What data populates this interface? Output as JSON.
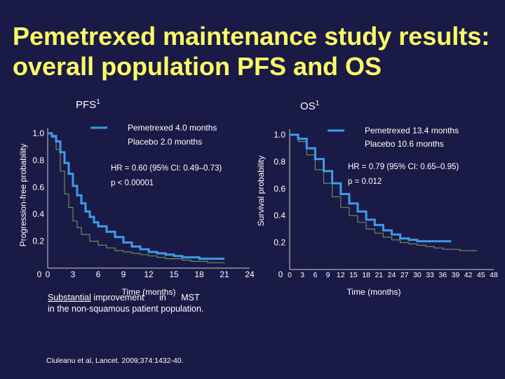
{
  "slide": {
    "title_line1": "Pemetrexed maintenance study results:",
    "title_line2": "overall population PFS and OS",
    "note_underlined": "Substantial",
    "note_rest1": "improvement in MST",
    "note_rest2": "in the non-squamous patient population.",
    "citation": "Ciuleanu et al, Lancet. 2009;374:1432-40.",
    "colors": {
      "background": "#1a1a46",
      "title": "#ffff66",
      "text": "#ffffff",
      "pemetrexed": "#3d9be9",
      "placebo": "#6b8e5a"
    }
  },
  "chart_data": [
    {
      "type": "line",
      "panel_title": "PFS",
      "panel_title_sup": "1",
      "ylabel": "Progression-free probability",
      "xlabel": "Time (months)",
      "x_ticks": [
        "0",
        "3",
        "6",
        "9",
        "12",
        "15",
        "18",
        "21",
        "24"
      ],
      "y_ticks": [
        "0",
        "0.2",
        "0.4",
        "0.6",
        "0.8",
        "1.0"
      ],
      "y_tick_values": [
        0,
        0.2,
        0.4,
        0.6,
        0.8,
        1.0
      ],
      "xlim": [
        0,
        24
      ],
      "ylim": [
        0,
        1.0
      ],
      "legend": [
        "Pemetrexed 4.0 months",
        "Placebo 2.0 months"
      ],
      "annotations": [
        "HR = 0.60 (95% CI: 0.49–0.73)",
        "p < 0.00001"
      ],
      "series": [
        {
          "name": "Pemetrexed",
          "x": [
            0,
            0.5,
            1,
            1.5,
            2,
            2.5,
            3,
            3.5,
            4,
            4.5,
            5,
            5.5,
            6,
            7,
            8,
            9,
            10,
            11,
            12,
            13,
            14,
            15,
            16,
            17,
            18,
            19,
            20,
            21
          ],
          "y": [
            1.0,
            0.98,
            0.94,
            0.86,
            0.78,
            0.7,
            0.61,
            0.54,
            0.48,
            0.42,
            0.38,
            0.34,
            0.31,
            0.27,
            0.23,
            0.19,
            0.16,
            0.14,
            0.12,
            0.11,
            0.1,
            0.09,
            0.08,
            0.08,
            0.07,
            0.07,
            0.07,
            0.07
          ]
        },
        {
          "name": "Placebo",
          "x": [
            0,
            0.5,
            1,
            1.5,
            2,
            2.5,
            3,
            3.5,
            4,
            5,
            6,
            7,
            8,
            9,
            10,
            11,
            12,
            13,
            14,
            15,
            16,
            17,
            18,
            19,
            20,
            21
          ],
          "y": [
            1.0,
            0.97,
            0.88,
            0.72,
            0.55,
            0.45,
            0.35,
            0.3,
            0.25,
            0.2,
            0.17,
            0.15,
            0.13,
            0.12,
            0.11,
            0.1,
            0.09,
            0.08,
            0.07,
            0.07,
            0.06,
            0.05,
            0.05,
            0.04,
            0.04,
            0.04
          ]
        }
      ]
    },
    {
      "type": "line",
      "panel_title": "OS",
      "panel_title_sup": "1",
      "ylabel": "Survival probability",
      "xlabel": "Time (months)",
      "x_ticks": [
        "0",
        "3",
        "6",
        "9",
        "12",
        "15",
        "18",
        "21",
        "24",
        "27",
        "30",
        "33",
        "36",
        "39",
        "42",
        "45",
        "48"
      ],
      "y_ticks": [
        "0",
        "0.2",
        "0.4",
        "0.6",
        "0.8",
        "1.0"
      ],
      "y_tick_values": [
        0,
        0.2,
        0.4,
        0.6,
        0.8,
        1.0
      ],
      "xlim": [
        0,
        48
      ],
      "ylim": [
        0,
        1.0
      ],
      "legend": [
        "Pemetrexed 13.4 months",
        "Placebo 10.6 months"
      ],
      "annotations": [
        "HR = 0.79 (95% CI: 0.65–0.95)",
        "p = 0.012"
      ],
      "series": [
        {
          "name": "Pemetrexed",
          "x": [
            0,
            2,
            4,
            6,
            8,
            10,
            12,
            14,
            16,
            18,
            20,
            22,
            24,
            26,
            28,
            30,
            32,
            34,
            36,
            38
          ],
          "y": [
            1.0,
            0.97,
            0.9,
            0.82,
            0.73,
            0.64,
            0.56,
            0.49,
            0.43,
            0.37,
            0.33,
            0.29,
            0.26,
            0.23,
            0.22,
            0.21,
            0.21,
            0.21,
            0.21,
            0.21
          ]
        },
        {
          "name": "Placebo",
          "x": [
            0,
            2,
            4,
            6,
            8,
            10,
            12,
            14,
            16,
            18,
            20,
            22,
            24,
            26,
            28,
            30,
            32,
            34,
            36,
            38,
            40,
            42,
            44
          ],
          "y": [
            1.0,
            0.95,
            0.85,
            0.74,
            0.64,
            0.54,
            0.46,
            0.4,
            0.35,
            0.3,
            0.27,
            0.24,
            0.22,
            0.2,
            0.19,
            0.18,
            0.17,
            0.16,
            0.15,
            0.15,
            0.14,
            0.14,
            0.14
          ]
        }
      ]
    }
  ]
}
